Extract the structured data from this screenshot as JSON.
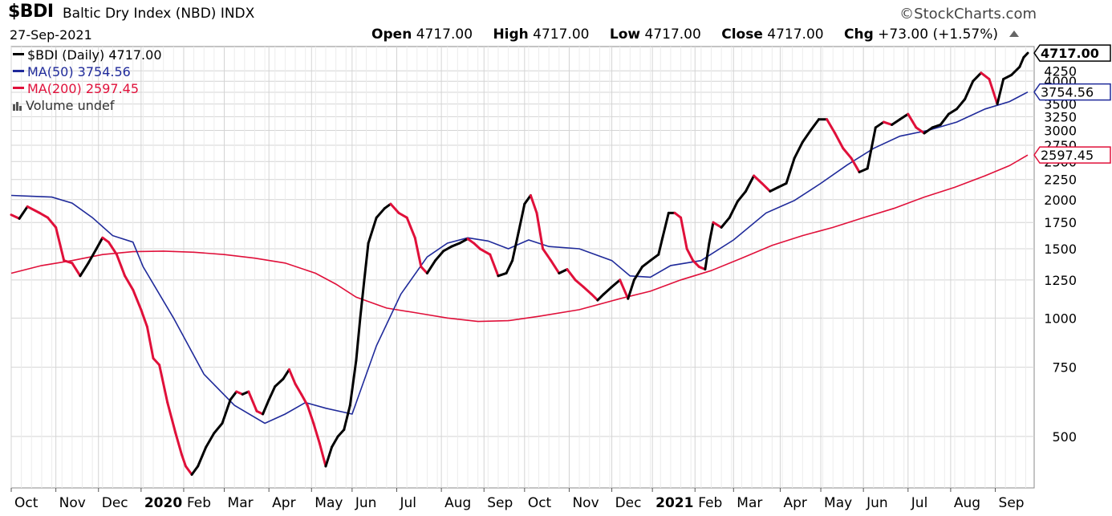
{
  "header": {
    "symbol": "$BDI",
    "name": "Baltic Dry Index (NBD)  INDX",
    "brand": "©StockCharts.com",
    "date": "27-Sep-2021",
    "open_label": "Open",
    "open": "4717.00",
    "high_label": "High",
    "high": "4717.00",
    "low_label": "Low",
    "low": "4717.00",
    "close_label": "Close",
    "close": "4717.00",
    "chg_label": "Chg",
    "chg": "+73.00 (+1.57%)"
  },
  "legend": {
    "price": "$BDI (Daily) 4717.00",
    "ma50": "MA(50) 3754.56",
    "ma200": "MA(200) 2597.45",
    "volume": "Volume undef"
  },
  "colors": {
    "up": "#000000",
    "down": "#e0103a",
    "ma50": "#1f2a9a",
    "ma200": "#e0103a",
    "grid": "#d4d4d4"
  },
  "chart_data": {
    "type": "line",
    "scale": "log",
    "ylim": [
      370,
      4900
    ],
    "x_ticks": [
      {
        "label": "Oct",
        "i": 0,
        "bold": false
      },
      {
        "label": "Nov",
        "i": 22,
        "bold": false
      },
      {
        "label": "Dec",
        "i": 43,
        "bold": false
      },
      {
        "label": "2020",
        "i": 64,
        "bold": true
      },
      {
        "label": "Feb",
        "i": 85,
        "bold": false
      },
      {
        "label": "Mar",
        "i": 105,
        "bold": false
      },
      {
        "label": "Apr",
        "i": 127,
        "bold": false
      },
      {
        "label": "May",
        "i": 148,
        "bold": false
      },
      {
        "label": "Jun",
        "i": 168,
        "bold": false
      },
      {
        "label": "Jul",
        "i": 190,
        "bold": false
      },
      {
        "label": "Aug",
        "i": 212,
        "bold": false
      },
      {
        "label": "Sep",
        "i": 233,
        "bold": false
      },
      {
        "label": "Oct",
        "i": 253,
        "bold": false
      },
      {
        "label": "Nov",
        "i": 275,
        "bold": false
      },
      {
        "label": "Dec",
        "i": 296,
        "bold": false
      },
      {
        "label": "2021",
        "i": 316,
        "bold": true
      },
      {
        "label": "Feb",
        "i": 337,
        "bold": false
      },
      {
        "label": "Mar",
        "i": 356,
        "bold": false
      },
      {
        "label": "Apr",
        "i": 379,
        "bold": false
      },
      {
        "label": "May",
        "i": 399,
        "bold": false
      },
      {
        "label": "Jun",
        "i": 420,
        "bold": false
      },
      {
        "label": "Jul",
        "i": 442,
        "bold": false
      },
      {
        "label": "Aug",
        "i": 463,
        "bold": false
      },
      {
        "label": "Sep",
        "i": 485,
        "bold": false
      }
    ],
    "y_ticks": [
      500,
      750,
      1000,
      1250,
      1500,
      1750,
      2000,
      2250,
      2500,
      2750,
      3000,
      3250,
      3500,
      3750,
      4000,
      4250
    ],
    "last_labels": {
      "price": "4717.00",
      "ma50": "3754.56",
      "ma200": "2597.45"
    },
    "series": [
      {
        "key": "price",
        "name": "$BDI (Daily)",
        "values": [
          [
            0,
            1830
          ],
          [
            4,
            1790
          ],
          [
            8,
            1920
          ],
          [
            14,
            1850
          ],
          [
            18,
            1800
          ],
          [
            22,
            1700
          ],
          [
            26,
            1400
          ],
          [
            30,
            1380
          ],
          [
            34,
            1280
          ],
          [
            38,
            1380
          ],
          [
            42,
            1500
          ],
          [
            45,
            1600
          ],
          [
            48,
            1560
          ],
          [
            52,
            1450
          ],
          [
            56,
            1280
          ],
          [
            60,
            1180
          ],
          [
            64,
            1050
          ],
          [
            67,
            950
          ],
          [
            70,
            790
          ],
          [
            73,
            760
          ],
          [
            77,
            610
          ],
          [
            81,
            510
          ],
          [
            84,
            450
          ],
          [
            86,
            420
          ],
          [
            89,
            400
          ],
          [
            92,
            420
          ],
          [
            96,
            470
          ],
          [
            100,
            510
          ],
          [
            104,
            540
          ],
          [
            108,
            620
          ],
          [
            111,
            650
          ],
          [
            114,
            640
          ],
          [
            117,
            650
          ],
          [
            121,
            580
          ],
          [
            124,
            570
          ],
          [
            127,
            620
          ],
          [
            130,
            670
          ],
          [
            134,
            700
          ],
          [
            137,
            740
          ],
          [
            140,
            680
          ],
          [
            143,
            640
          ],
          [
            146,
            600
          ],
          [
            149,
            540
          ],
          [
            152,
            480
          ],
          [
            155,
            420
          ],
          [
            158,
            470
          ],
          [
            161,
            500
          ],
          [
            164,
            520
          ],
          [
            167,
            600
          ],
          [
            170,
            780
          ],
          [
            172,
            1000
          ],
          [
            174,
            1250
          ],
          [
            176,
            1550
          ],
          [
            180,
            1800
          ],
          [
            184,
            1900
          ],
          [
            187,
            1950
          ],
          [
            191,
            1850
          ],
          [
            195,
            1800
          ],
          [
            199,
            1600
          ],
          [
            202,
            1350
          ],
          [
            205,
            1300
          ],
          [
            209,
            1400
          ],
          [
            213,
            1480
          ],
          [
            217,
            1520
          ],
          [
            221,
            1550
          ],
          [
            225,
            1590
          ],
          [
            228,
            1550
          ],
          [
            231,
            1500
          ],
          [
            236,
            1450
          ],
          [
            240,
            1280
          ],
          [
            244,
            1300
          ],
          [
            247,
            1400
          ],
          [
            250,
            1650
          ],
          [
            253,
            1950
          ],
          [
            256,
            2050
          ],
          [
            259,
            1850
          ],
          [
            262,
            1500
          ],
          [
            266,
            1400
          ],
          [
            270,
            1300
          ],
          [
            274,
            1330
          ],
          [
            278,
            1250
          ],
          [
            282,
            1200
          ],
          [
            286,
            1150
          ],
          [
            289,
            1110
          ],
          [
            292,
            1150
          ],
          [
            296,
            1200
          ],
          [
            300,
            1250
          ],
          [
            304,
            1120
          ],
          [
            307,
            1250
          ],
          [
            311,
            1350
          ],
          [
            315,
            1400
          ],
          [
            319,
            1450
          ],
          [
            321,
            1600
          ],
          [
            324,
            1850
          ],
          [
            327,
            1850
          ],
          [
            330,
            1800
          ],
          [
            333,
            1500
          ],
          [
            336,
            1400
          ],
          [
            339,
            1350
          ],
          [
            342,
            1330
          ],
          [
            344,
            1550
          ],
          [
            346,
            1750
          ],
          [
            350,
            1700
          ],
          [
            354,
            1800
          ],
          [
            358,
            1980
          ],
          [
            362,
            2100
          ],
          [
            366,
            2300
          ],
          [
            370,
            2200
          ],
          [
            374,
            2100
          ],
          [
            378,
            2150
          ],
          [
            382,
            2200
          ],
          [
            386,
            2550
          ],
          [
            390,
            2800
          ],
          [
            394,
            3000
          ],
          [
            398,
            3200
          ],
          [
            402,
            3200
          ],
          [
            406,
            2950
          ],
          [
            410,
            2700
          ],
          [
            414,
            2550
          ],
          [
            418,
            2350
          ],
          [
            422,
            2400
          ],
          [
            426,
            3050
          ],
          [
            430,
            3150
          ],
          [
            434,
            3100
          ],
          [
            438,
            3200
          ],
          [
            442,
            3300
          ],
          [
            446,
            3050
          ],
          [
            450,
            2950
          ],
          [
            454,
            3050
          ],
          [
            458,
            3100
          ],
          [
            462,
            3300
          ],
          [
            466,
            3400
          ],
          [
            470,
            3600
          ],
          [
            474,
            4000
          ],
          [
            478,
            4200
          ],
          [
            482,
            4050
          ],
          [
            486,
            3500
          ],
          [
            489,
            4050
          ],
          [
            493,
            4150
          ],
          [
            497,
            4350
          ],
          [
            499,
            4600
          ],
          [
            501,
            4717
          ]
        ]
      },
      {
        "key": "ma50",
        "name": "MA(50)",
        "values": [
          [
            0,
            2050
          ],
          [
            10,
            2040
          ],
          [
            20,
            2030
          ],
          [
            30,
            1960
          ],
          [
            40,
            1800
          ],
          [
            50,
            1620
          ],
          [
            60,
            1560
          ],
          [
            65,
            1350
          ],
          [
            80,
            1000
          ],
          [
            95,
            720
          ],
          [
            110,
            600
          ],
          [
            125,
            540
          ],
          [
            135,
            570
          ],
          [
            145,
            610
          ],
          [
            155,
            590
          ],
          [
            168,
            570
          ],
          [
            180,
            850
          ],
          [
            192,
            1150
          ],
          [
            205,
            1430
          ],
          [
            215,
            1550
          ],
          [
            225,
            1600
          ],
          [
            235,
            1570
          ],
          [
            245,
            1500
          ],
          [
            255,
            1580
          ],
          [
            265,
            1520
          ],
          [
            280,
            1500
          ],
          [
            296,
            1400
          ],
          [
            305,
            1280
          ],
          [
            315,
            1270
          ],
          [
            325,
            1360
          ],
          [
            340,
            1400
          ],
          [
            356,
            1580
          ],
          [
            372,
            1850
          ],
          [
            386,
            1990
          ],
          [
            399,
            2200
          ],
          [
            412,
            2450
          ],
          [
            425,
            2700
          ],
          [
            438,
            2900
          ],
          [
            452,
            3000
          ],
          [
            466,
            3150
          ],
          [
            480,
            3400
          ],
          [
            492,
            3550
          ],
          [
            501,
            3754
          ]
        ]
      },
      {
        "key": "ma200",
        "name": "MA(200)",
        "values": [
          [
            0,
            1300
          ],
          [
            15,
            1360
          ],
          [
            30,
            1400
          ],
          [
            45,
            1450
          ],
          [
            60,
            1475
          ],
          [
            75,
            1480
          ],
          [
            90,
            1470
          ],
          [
            105,
            1450
          ],
          [
            120,
            1420
          ],
          [
            135,
            1380
          ],
          [
            150,
            1300
          ],
          [
            160,
            1220
          ],
          [
            170,
            1130
          ],
          [
            185,
            1060
          ],
          [
            200,
            1030
          ],
          [
            215,
            1000
          ],
          [
            230,
            980
          ],
          [
            245,
            985
          ],
          [
            260,
            1010
          ],
          [
            280,
            1050
          ],
          [
            300,
            1120
          ],
          [
            315,
            1170
          ],
          [
            330,
            1250
          ],
          [
            345,
            1320
          ],
          [
            360,
            1420
          ],
          [
            375,
            1530
          ],
          [
            390,
            1620
          ],
          [
            405,
            1700
          ],
          [
            420,
            1800
          ],
          [
            435,
            1900
          ],
          [
            450,
            2030
          ],
          [
            465,
            2150
          ],
          [
            480,
            2300
          ],
          [
            492,
            2440
          ],
          [
            501,
            2597
          ]
        ]
      }
    ]
  }
}
